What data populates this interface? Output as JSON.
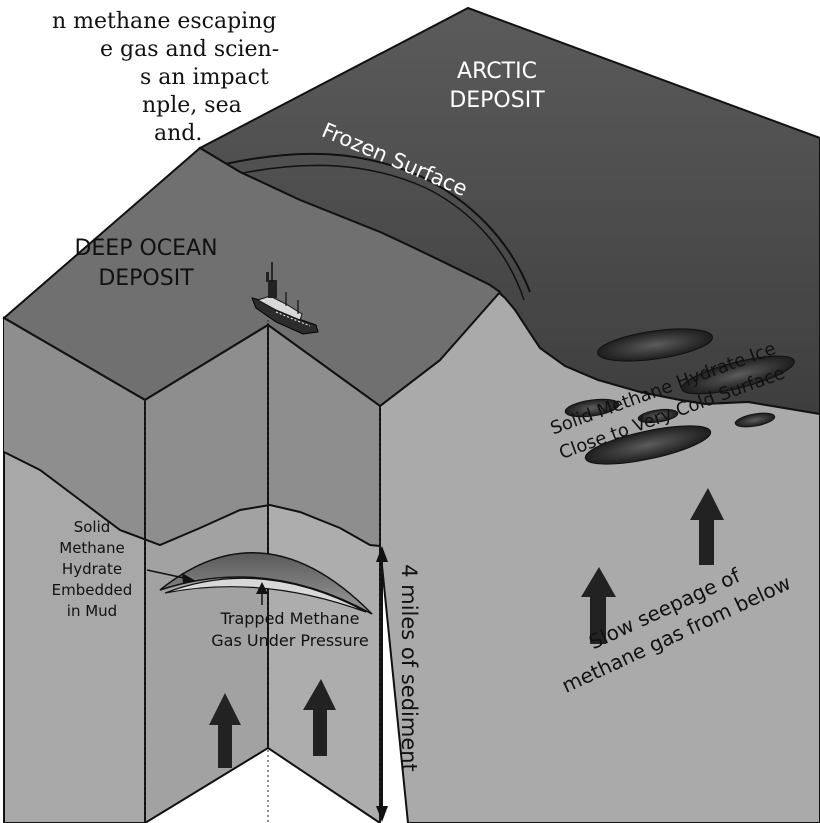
{
  "intro_text": {
    "lines": [
      "n methane escaping",
      "e gas and scien-",
      "s an impact",
      "nple, sea",
      "and."
    ]
  },
  "labels": {
    "arctic_1": "ARCTIC",
    "arctic_2": "DEPOSIT",
    "frozen": "Frozen Surface",
    "deep_1": "DEEP OCEAN",
    "deep_2": "DEPOSIT",
    "ice_1": "Solid Methane Hydrate Ice",
    "ice_2": "Close to Very Cold Surface",
    "hydrate_1": "Solid",
    "hydrate_2": "Methane",
    "hydrate_3": "Hydrate",
    "hydrate_4": "Embedded",
    "hydrate_5": "in Mud",
    "trapped_1": "Trapped Methane",
    "trapped_2": "Gas Under Pressure",
    "sediment": "4 miles of sediment",
    "seep_1": "Slow seepage of",
    "seep_2": "methane gas from below"
  },
  "colors": {
    "arctic_top": "#4f4f4f",
    "sea_surface": "#6f6f6f",
    "front_face": "#a5a5a5",
    "right_face": "#a9a9a9",
    "outline": "#111111"
  }
}
